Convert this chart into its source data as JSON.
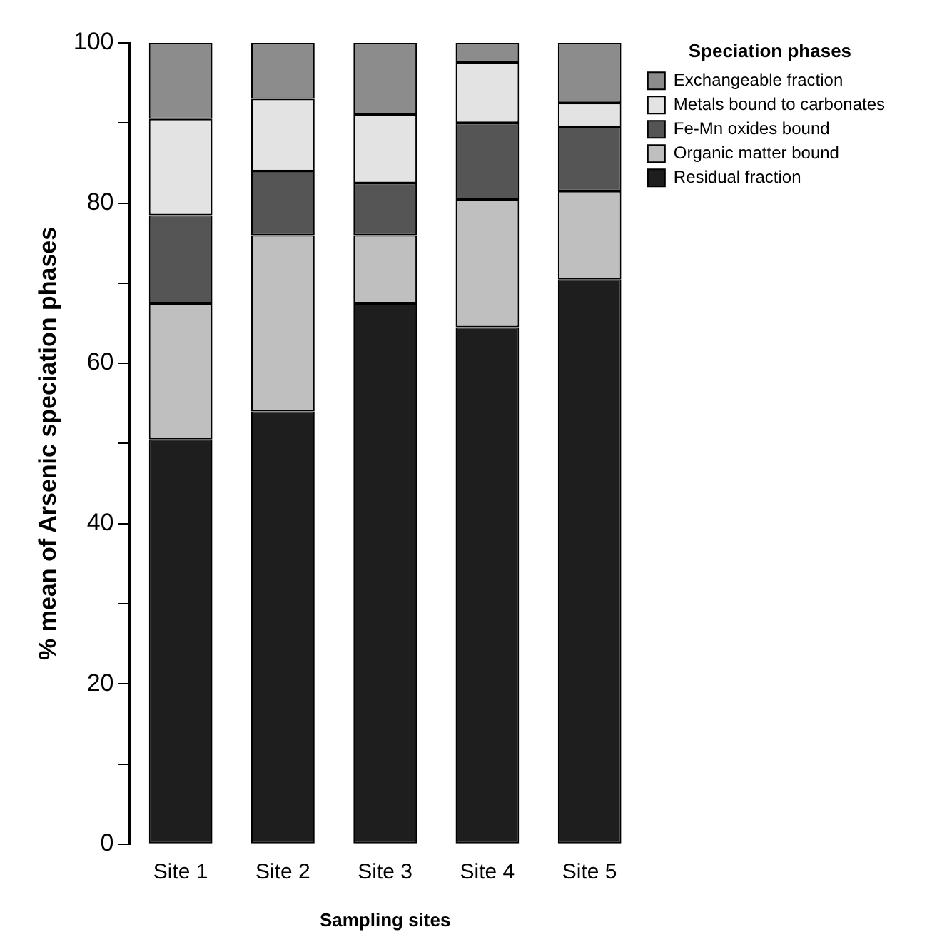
{
  "chart_data": {
    "type": "bar",
    "stacked": true,
    "xlabel": "Sampling sites",
    "ylabel": "% mean of Arsenic speciation phases",
    "legend_title": "Speciation phases",
    "legend": "top right",
    "grid": false,
    "categories": [
      "Site 1",
      "Site 2",
      "Site 3",
      "Site 4",
      "Site 5"
    ],
    "ylim": [
      0,
      100
    ],
    "yticks": [
      0,
      {
        "value": 10,
        "label": null
      },
      20,
      {
        "value": 30,
        "label": null
      },
      40,
      {
        "value": 50,
        "label": null
      },
      60,
      {
        "value": 70,
        "label": null
      },
      80,
      {
        "value": 90,
        "label": null
      },
      100
    ],
    "series": [
      {
        "name": "Residual fraction",
        "color": "#1e1e1e",
        "values": [
          50.5,
          54,
          67.5,
          64.5,
          70.5
        ]
      },
      {
        "name": "Organic matter bound",
        "color": "#bfbfbf",
        "values": [
          17,
          22,
          8.5,
          16,
          11
        ]
      },
      {
        "name": "Fe-Mn oxides bound",
        "color": "#555555",
        "values": [
          11,
          8,
          6.5,
          9.5,
          8
        ]
      },
      {
        "name": "Metals bound to carbonates",
        "color": "#e3e3e3",
        "values": [
          12,
          9,
          8.5,
          7.5,
          3
        ]
      },
      {
        "name": "Exchangeable fraction",
        "color": "#8c8c8c",
        "values": [
          9.5,
          7,
          9,
          2.5,
          7.5
        ]
      }
    ]
  }
}
